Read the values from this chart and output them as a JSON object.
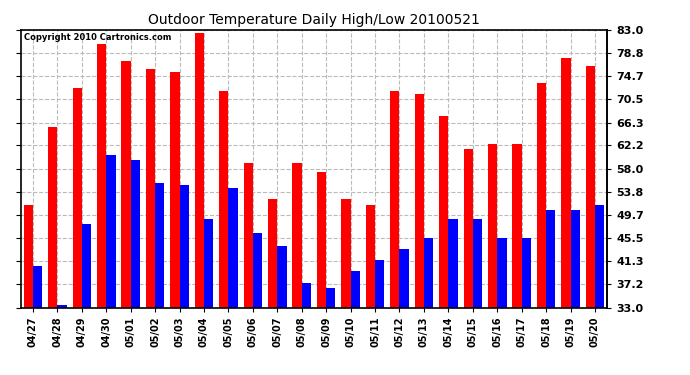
{
  "title": "Outdoor Temperature Daily High/Low 20100521",
  "copyright": "Copyright 2010 Cartronics.com",
  "dates": [
    "04/27",
    "04/28",
    "04/29",
    "04/30",
    "05/01",
    "05/02",
    "05/03",
    "05/04",
    "05/05",
    "05/06",
    "05/07",
    "05/08",
    "05/09",
    "05/10",
    "05/11",
    "05/12",
    "05/13",
    "05/14",
    "05/15",
    "05/16",
    "05/17",
    "05/18",
    "05/19",
    "05/20"
  ],
  "highs": [
    51.5,
    65.5,
    72.5,
    80.5,
    77.5,
    76.0,
    75.5,
    82.5,
    72.0,
    59.0,
    52.5,
    59.0,
    57.5,
    52.5,
    51.5,
    72.0,
    71.5,
    67.5,
    61.5,
    62.5,
    62.5,
    73.5,
    78.0,
    76.5
  ],
  "lows": [
    40.5,
    33.5,
    48.0,
    60.5,
    59.5,
    55.5,
    55.0,
    49.0,
    54.5,
    46.5,
    44.0,
    37.5,
    36.5,
    39.5,
    41.5,
    43.5,
    45.5,
    49.0,
    49.0,
    45.5,
    45.5,
    50.5,
    50.5,
    51.5
  ],
  "high_color": "#FF0000",
  "low_color": "#0000FF",
  "bg_color": "#FFFFFF",
  "grid_color": "#BBBBBB",
  "ymin": 33.0,
  "ymax": 83.0,
  "yticks": [
    33.0,
    37.2,
    41.3,
    45.5,
    49.7,
    53.8,
    58.0,
    62.2,
    66.3,
    70.5,
    74.7,
    78.8,
    83.0
  ]
}
